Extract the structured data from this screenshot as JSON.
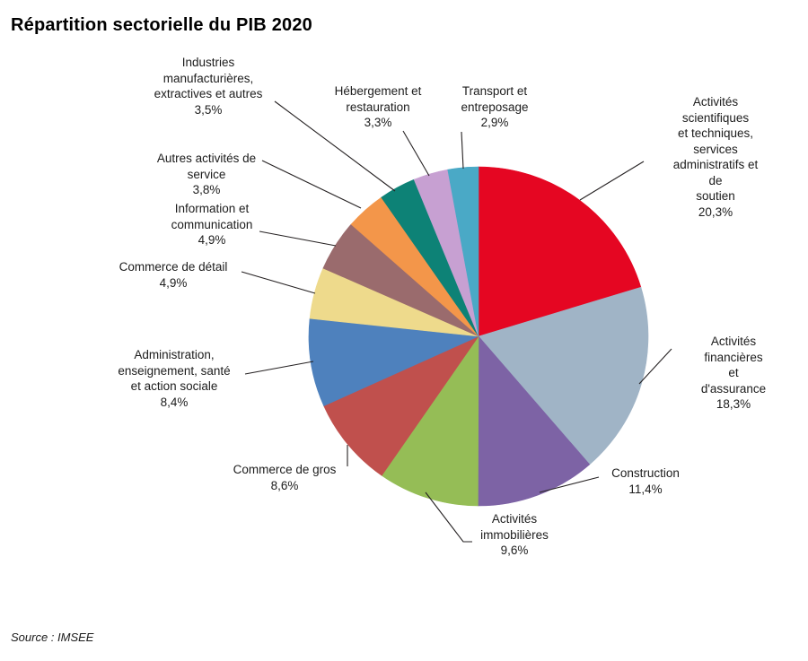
{
  "title": "Répartition sectorielle du PIB 2020",
  "source": "Source : IMSEE",
  "chart_data": {
    "type": "pie",
    "title": "Répartition sectorielle du PIB 2020",
    "unit": "%",
    "start_angle_deg": -90,
    "direction": "clockwise",
    "legend_position": "callout-labels",
    "slices": [
      {
        "label": "Activités scientifiques et techniques, services administratifs et de soutien",
        "value": 20.3,
        "pct_label": "20,3%",
        "color": "#e50622",
        "label_lines": [
          "Activités scientifiques",
          "et techniques,",
          "services",
          "administratifs et de",
          "soutien",
          "20,3%"
        ]
      },
      {
        "label": "Activités financières et d'assurance",
        "value": 18.3,
        "pct_label": "18,3%",
        "color": "#a0b4c6",
        "label_lines": [
          "Activités financières",
          "et d'assurance",
          "18,3%"
        ]
      },
      {
        "label": "Construction",
        "value": 11.4,
        "pct_label": "11,4%",
        "color": "#7d63a5",
        "label_lines": [
          "Construction",
          "11,4%"
        ]
      },
      {
        "label": "Activités immobilières",
        "value": 9.6,
        "pct_label": "9,6%",
        "color": "#95bd56",
        "label_lines": [
          "Activités",
          "immobilières",
          "9,6%"
        ]
      },
      {
        "label": "Commerce de gros",
        "value": 8.6,
        "pct_label": "8,6%",
        "color": "#c0504d",
        "label_lines": [
          "Commerce de gros",
          "8,6%"
        ]
      },
      {
        "label": "Administration, enseignement, santé et action sociale",
        "value": 8.4,
        "pct_label": "8,4%",
        "color": "#4e81bd",
        "label_lines": [
          "Administration,",
          "enseignement, santé",
          "et action sociale",
          "8,4%"
        ]
      },
      {
        "label": "Commerce de détail",
        "value": 4.9,
        "pct_label": "4,9%",
        "color": "#eeda8c",
        "label_lines": [
          "Commerce de détail",
          "4,9%"
        ]
      },
      {
        "label": "Information et communication",
        "value": 4.9,
        "pct_label": "4,9%",
        "color": "#9a6b6d",
        "label_lines": [
          "Information et",
          "communication",
          "4,9%"
        ]
      },
      {
        "label": "Autres activités de service",
        "value": 3.8,
        "pct_label": "3,8%",
        "color": "#f3964a",
        "label_lines": [
          "Autres activités de",
          "service",
          "3,8%"
        ]
      },
      {
        "label": "Industries manufacturières, extractives et autres",
        "value": 3.5,
        "pct_label": "3,5%",
        "color": "#0d8276",
        "label_lines": [
          "Industries",
          "manufacturières,",
          "extractives et autres",
          "3,5%"
        ]
      },
      {
        "label": "Hébergement et restauration",
        "value": 3.3,
        "pct_label": "3,3%",
        "color": "#c7a0d2",
        "label_lines": [
          "Hébergement et",
          "restauration",
          "3,3%"
        ]
      },
      {
        "label": "Transport et entreposage",
        "value": 2.9,
        "pct_label": "2,9%",
        "color": "#4aa9c6",
        "label_lines": [
          "Transport et",
          "entreposage",
          "2,9%"
        ]
      }
    ]
  }
}
